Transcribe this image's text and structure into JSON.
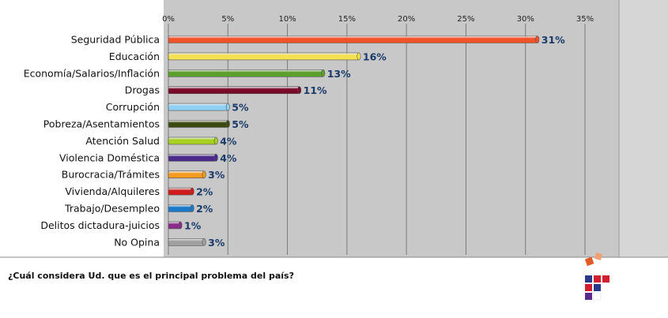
{
  "question": "¿Cuál considera Ud. que es el principal problema del país?",
  "chart_data": {
    "type": "bar",
    "orientation": "horizontal",
    "categories": [
      "Seguridad Pública",
      "Educación",
      "Economía/Salarios/Inflación",
      "Drogas",
      "Corrupción",
      "Pobreza/Asentamientos",
      "Atención Salud",
      "Violencia Doméstica",
      "Burocracia/Trámites",
      "Vivienda/Alquileres",
      "Trabajo/Desempleo",
      "Delitos dictadura-juicios",
      "No Opina"
    ],
    "values": [
      31,
      16,
      13,
      11,
      5,
      5,
      4,
      4,
      3,
      2,
      2,
      1,
      3
    ],
    "value_labels": [
      "31%",
      "16%",
      "13%",
      "11%",
      "5%",
      "5%",
      "4%",
      "4%",
      "3%",
      "2%",
      "2%",
      "1%",
      "3%"
    ],
    "bar_colors": [
      "#f2522a",
      "#f5e050",
      "#5ca02c",
      "#7a0a2a",
      "#8fd0f5",
      "#3a4a10",
      "#a8d020",
      "#4a2a8a",
      "#f59a20",
      "#d01a1a",
      "#1a7ac8",
      "#8a2a8a",
      "#a0a0a0"
    ],
    "xlim": [
      0,
      35
    ],
    "xticks": [
      0,
      5,
      10,
      15,
      20,
      25,
      30,
      35
    ],
    "xtick_labels": [
      "0%",
      "5%",
      "10%",
      "15%",
      "20%",
      "25%",
      "30%",
      "35%"
    ],
    "grid": true,
    "axis_position": "top",
    "plot_background": "#c8c8c8",
    "value_label_color": "#1a3a6a"
  }
}
